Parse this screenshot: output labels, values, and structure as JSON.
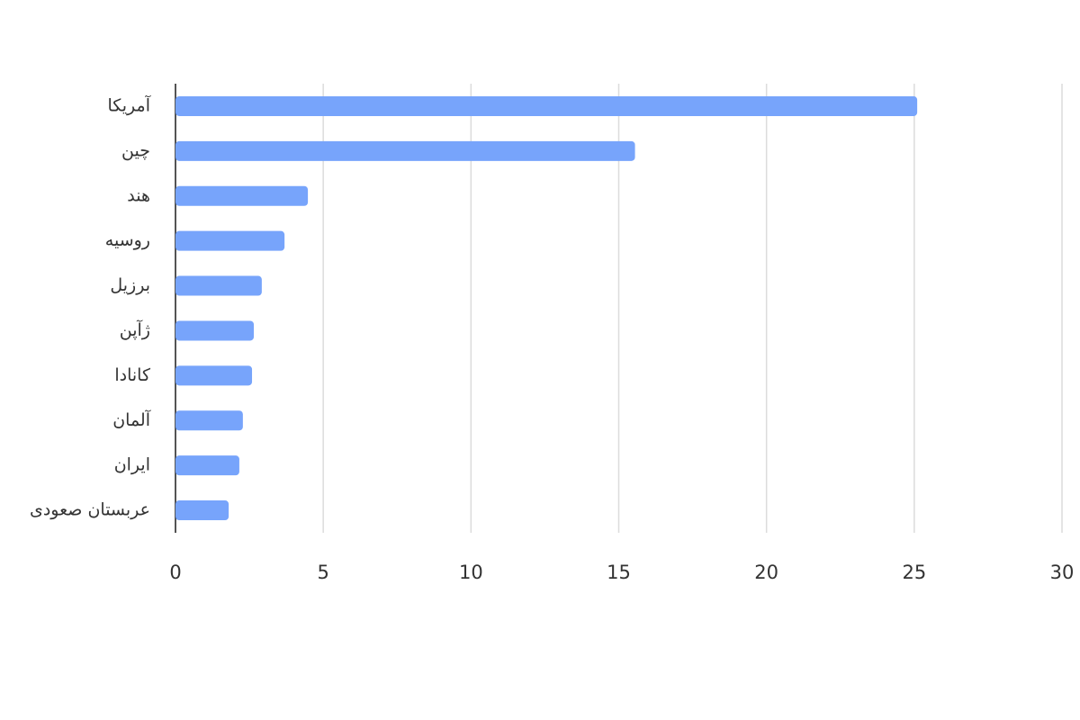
{
  "chart_data": {
    "type": "barh",
    "categories": [
      "آمریکا",
      "چین",
      "هند",
      "روسیه",
      "برزیل",
      "ژآپن",
      "کانادا",
      "آلمان",
      "ایران",
      "عربستان صعودی"
    ],
    "values": [
      25.1,
      15.55,
      4.48,
      3.69,
      2.92,
      2.65,
      2.59,
      2.28,
      2.16,
      1.8
    ],
    "color": "#77a4fb",
    "xlim": [
      0,
      30
    ],
    "xticks": [
      0,
      5,
      10,
      15,
      20,
      25,
      30
    ],
    "grid": true
  }
}
